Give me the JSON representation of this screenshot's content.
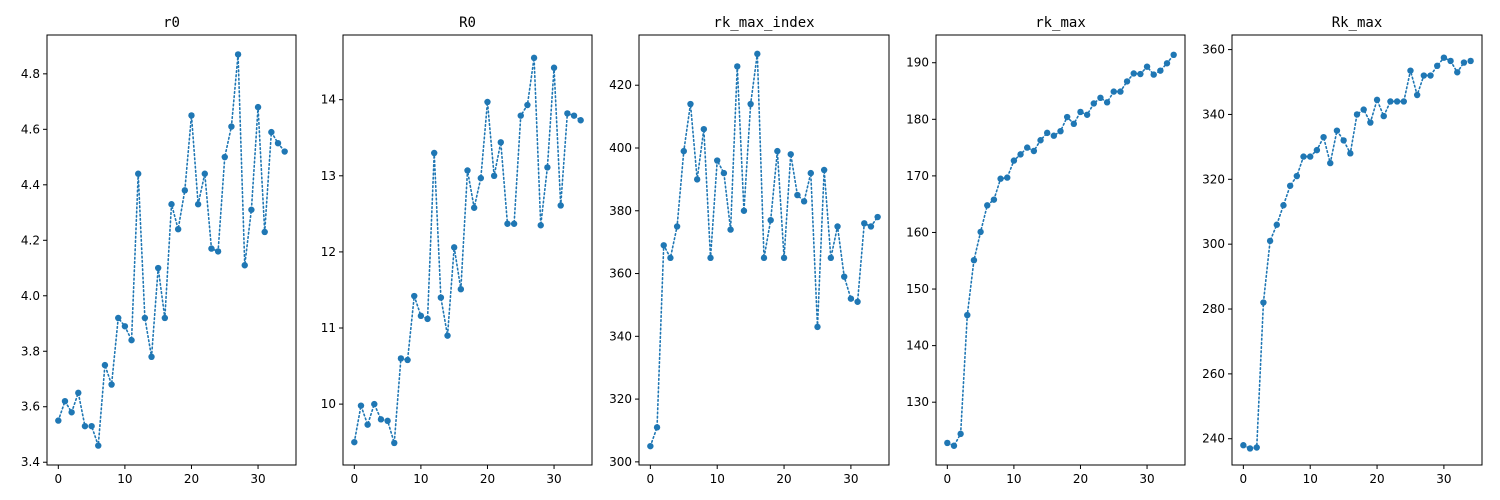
{
  "chart_data": [
    {
      "type": "line",
      "title": "r0",
      "xlabel": "",
      "ylabel": "",
      "grid": false,
      "xlim": [
        -1.7,
        35.7
      ],
      "ylim": [
        3.39,
        4.94
      ],
      "xticks": [
        0,
        10,
        20,
        30
      ],
      "yticks": [
        3.4,
        3.6,
        3.8,
        4.0,
        4.2,
        4.4,
        4.6,
        4.8
      ],
      "series": [
        {
          "x": [
            0,
            1,
            2,
            3,
            4,
            5,
            6,
            7,
            8,
            9,
            10,
            11,
            12,
            13,
            14,
            15,
            16,
            17,
            18,
            19,
            20,
            21,
            22,
            23,
            24,
            25,
            26,
            27,
            28,
            29,
            30,
            31,
            32,
            33,
            34
          ],
          "values": [
            3.55,
            3.62,
            3.58,
            3.65,
            3.53,
            3.53,
            3.46,
            3.75,
            3.68,
            3.92,
            3.89,
            3.84,
            4.44,
            3.92,
            3.78,
            4.1,
            3.92,
            4.33,
            4.24,
            4.38,
            4.65,
            4.33,
            4.44,
            4.17,
            4.16,
            4.5,
            4.61,
            4.87,
            4.11,
            4.31,
            4.68,
            4.23,
            4.59,
            4.55,
            4.52
          ]
        }
      ]
    },
    {
      "type": "line",
      "title": "R0",
      "xlabel": "",
      "ylabel": "",
      "grid": false,
      "xlim": [
        -1.7,
        35.7
      ],
      "ylim": [
        9.2,
        14.85
      ],
      "xticks": [
        0,
        10,
        20,
        30
      ],
      "yticks": [
        10,
        11,
        12,
        13,
        14
      ],
      "series": [
        {
          "x": [
            0,
            1,
            2,
            3,
            4,
            5,
            6,
            7,
            8,
            9,
            10,
            11,
            12,
            13,
            14,
            15,
            16,
            17,
            18,
            19,
            20,
            21,
            22,
            23,
            24,
            25,
            26,
            27,
            28,
            29,
            30,
            31,
            32,
            33,
            34
          ],
          "values": [
            9.5,
            9.98,
            9.73,
            10.0,
            9.8,
            9.78,
            9.49,
            10.6,
            10.58,
            11.42,
            11.16,
            11.12,
            13.3,
            11.4,
            10.9,
            12.06,
            11.51,
            13.07,
            12.58,
            12.97,
            13.97,
            13.0,
            13.44,
            12.37,
            12.37,
            13.79,
            13.93,
            14.55,
            12.35,
            13.11,
            14.42,
            12.61,
            13.82,
            13.79,
            13.73
          ]
        }
      ]
    },
    {
      "type": "line",
      "title": "rk_max_index",
      "xlabel": "",
      "ylabel": "",
      "grid": false,
      "xlim": [
        -1.7,
        35.7
      ],
      "ylim": [
        299,
        436
      ],
      "xticks": [
        0,
        10,
        20,
        30
      ],
      "yticks": [
        300,
        320,
        340,
        360,
        380,
        400,
        420
      ],
      "series": [
        {
          "x": [
            0,
            1,
            2,
            3,
            4,
            5,
            6,
            7,
            8,
            9,
            10,
            11,
            12,
            13,
            14,
            15,
            16,
            17,
            18,
            19,
            20,
            21,
            22,
            23,
            24,
            25,
            26,
            27,
            28,
            29,
            30,
            31,
            32,
            33,
            34
          ],
          "values": [
            305,
            311,
            369,
            365,
            375,
            399,
            414,
            390,
            406,
            365,
            396,
            392,
            374,
            426,
            380,
            414,
            430,
            365,
            377,
            399,
            365,
            398,
            385,
            383,
            392,
            343,
            393,
            365,
            375,
            359,
            352,
            351,
            376,
            375,
            378
          ]
        }
      ]
    },
    {
      "type": "line",
      "title": "rk_max",
      "xlabel": "",
      "ylabel": "",
      "grid": false,
      "xlim": [
        -1.7,
        35.7
      ],
      "ylim": [
        118.9,
        194.9
      ],
      "xticks": [
        0,
        10,
        20,
        30
      ],
      "yticks": [
        130,
        140,
        150,
        160,
        170,
        180,
        190
      ],
      "series": [
        {
          "x": [
            0,
            1,
            2,
            3,
            4,
            5,
            6,
            7,
            8,
            9,
            10,
            11,
            12,
            13,
            14,
            15,
            16,
            17,
            18,
            19,
            20,
            21,
            22,
            23,
            24,
            25,
            26,
            27,
            28,
            29,
            30,
            31,
            32,
            33,
            34
          ],
          "values": [
            122.8,
            122.3,
            124.4,
            145.4,
            155.1,
            160.1,
            164.8,
            165.8,
            169.5,
            169.7,
            172.7,
            173.8,
            175.0,
            174.4,
            176.3,
            177.6,
            177.1,
            177.9,
            180.4,
            179.2,
            181.3,
            180.8,
            182.8,
            183.8,
            183.0,
            184.9,
            184.9,
            186.7,
            188.1,
            188.0,
            189.3,
            187.9,
            188.6,
            189.9,
            191.4
          ]
        }
      ]
    },
    {
      "type": "line",
      "title": "Rk_max",
      "xlabel": "",
      "ylabel": "",
      "grid": false,
      "xlim": [
        -1.7,
        35.7
      ],
      "ylim": [
        231.9,
        364.5
      ],
      "xticks": [
        0,
        10,
        20,
        30
      ],
      "yticks": [
        240,
        260,
        280,
        300,
        320,
        340,
        360
      ],
      "series": [
        {
          "x": [
            0,
            1,
            2,
            3,
            4,
            5,
            6,
            7,
            8,
            9,
            10,
            11,
            12,
            13,
            14,
            15,
            16,
            17,
            18,
            19,
            20,
            21,
            22,
            23,
            24,
            25,
            26,
            27,
            28,
            29,
            30,
            31,
            32,
            33,
            34
          ],
          "values": [
            238.0,
            237.0,
            237.3,
            282.0,
            301.0,
            306.0,
            312.0,
            318.0,
            321.0,
            327.0,
            327.0,
            329.0,
            333.0,
            325.0,
            335.0,
            332.0,
            328.0,
            340.0,
            341.5,
            337.5,
            344.5,
            339.5,
            344.0,
            344.0,
            344.0,
            353.5,
            346.0,
            352.0,
            352.0,
            355.0,
            357.5,
            356.5,
            353.0,
            356.0,
            356.5
          ]
        }
      ]
    }
  ],
  "style": {
    "series_color": "#1f77b4",
    "marker": "circle",
    "line_style": "dotted"
  }
}
